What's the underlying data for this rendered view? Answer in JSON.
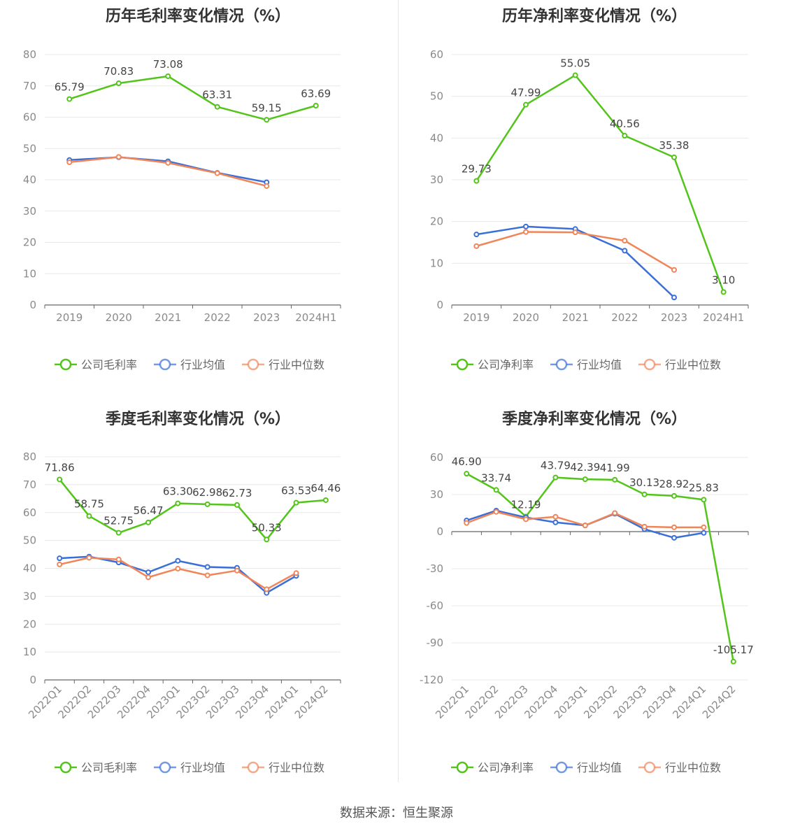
{
  "source_label": "数据来源：恒生聚源",
  "colors": {
    "company": "#52c41a",
    "avg": "#3a6fd8",
    "median": "#f0855a",
    "grid": "#e8e8e8",
    "axis": "#666666"
  },
  "chart_data": [
    {
      "type": "line",
      "title": "历年毛利率变化情况（%）",
      "categories": [
        "2019",
        "2020",
        "2021",
        "2022",
        "2023",
        "2024H1"
      ],
      "ylim": [
        0,
        80
      ],
      "yticks": [
        0,
        10,
        20,
        30,
        40,
        50,
        60,
        70,
        80
      ],
      "rotate_x": false,
      "grid": true,
      "legend_position": "bottom",
      "series": [
        {
          "name": "公司毛利率",
          "values": [
            65.79,
            70.83,
            73.08,
            63.31,
            59.15,
            63.69
          ],
          "labels": [
            "65.79",
            "70.83",
            "73.08",
            "63.31",
            "59.15",
            "63.69"
          ],
          "color": "#52c41a"
        },
        {
          "name": "行业均值",
          "values": [
            46.3,
            47.2,
            45.9,
            42.2,
            39.2,
            null
          ],
          "color": "#3a6fd8"
        },
        {
          "name": "行业中位数",
          "values": [
            45.6,
            47.3,
            45.4,
            42.1,
            38.0,
            null
          ],
          "color": "#f0855a"
        }
      ]
    },
    {
      "type": "line",
      "title": "历年净利率变化情况（%）",
      "categories": [
        "2019",
        "2020",
        "2021",
        "2022",
        "2023",
        "2024H1"
      ],
      "ylim": [
        0,
        60
      ],
      "yticks": [
        0,
        10,
        20,
        30,
        40,
        50,
        60
      ],
      "rotate_x": false,
      "grid": true,
      "legend_position": "bottom",
      "series": [
        {
          "name": "公司净利率",
          "values": [
            29.73,
            47.99,
            55.05,
            40.56,
            35.38,
            3.1
          ],
          "labels": [
            "29.73",
            "47.99",
            "55.05",
            "40.56",
            "35.38",
            "3.10"
          ],
          "color": "#52c41a"
        },
        {
          "name": "行业均值",
          "values": [
            16.9,
            18.8,
            18.2,
            13.0,
            1.8,
            null
          ],
          "color": "#3a6fd8"
        },
        {
          "name": "行业中位数",
          "values": [
            14.1,
            17.5,
            17.4,
            15.4,
            8.4,
            null
          ],
          "color": "#f0855a"
        }
      ]
    },
    {
      "type": "line",
      "title": "季度毛利率变化情况（%）",
      "categories": [
        "2022Q1",
        "2022Q2",
        "2022Q3",
        "2022Q4",
        "2023Q1",
        "2023Q2",
        "2023Q3",
        "2023Q4",
        "2024Q1",
        "2024Q2"
      ],
      "ylim": [
        0,
        80
      ],
      "yticks": [
        0,
        10,
        20,
        30,
        40,
        50,
        60,
        70,
        80
      ],
      "rotate_x": true,
      "grid": true,
      "legend_position": "bottom",
      "series": [
        {
          "name": "公司毛利率",
          "values": [
            71.86,
            58.75,
            52.75,
            56.47,
            63.3,
            62.98,
            62.73,
            50.33,
            63.53,
            64.46
          ],
          "labels": [
            "71.86",
            "58.75",
            "52.75",
            "56.47",
            "63.30",
            "62.98",
            "62.73",
            "50.33",
            "63.53",
            "64.46"
          ],
          "color": "#52c41a"
        },
        {
          "name": "行业均值",
          "values": [
            43.6,
            44.2,
            42.1,
            38.6,
            42.7,
            40.5,
            40.2,
            31.2,
            37.3,
            null
          ],
          "color": "#3a6fd8"
        },
        {
          "name": "行业中位数",
          "values": [
            41.4,
            43.8,
            43.2,
            36.8,
            39.9,
            37.5,
            39.2,
            32.5,
            38.3,
            null
          ],
          "color": "#f0855a"
        }
      ]
    },
    {
      "type": "line",
      "title": "季度净利率变化情况（%）",
      "categories": [
        "2022Q1",
        "2022Q2",
        "2022Q3",
        "2022Q4",
        "2023Q1",
        "2023Q2",
        "2023Q3",
        "2023Q4",
        "2024Q1",
        "2024Q2"
      ],
      "ylim": [
        -120,
        60
      ],
      "yticks": [
        -120,
        -90,
        -60,
        -30,
        0,
        30,
        60
      ],
      "rotate_x": true,
      "grid": true,
      "legend_position": "bottom",
      "series": [
        {
          "name": "公司净利率",
          "values": [
            46.9,
            33.74,
            12.19,
            43.79,
            42.39,
            41.99,
            30.13,
            28.92,
            25.83,
            -105.17
          ],
          "labels": [
            "46.90",
            "33.74",
            "12.19",
            "43.79",
            "42.39",
            "41.99",
            "30.13",
            "28.92",
            "25.83",
            "-105.17"
          ],
          "color": "#52c41a"
        },
        {
          "name": "行业均值",
          "values": [
            9.0,
            17.0,
            11.5,
            7.5,
            5.0,
            14.5,
            2.0,
            -5.0,
            -1.0,
            null
          ],
          "color": "#3a6fd8"
        },
        {
          "name": "行业中位数",
          "values": [
            7.0,
            16.0,
            10.0,
            12.0,
            5.0,
            15.0,
            4.0,
            3.5,
            3.5,
            null
          ],
          "color": "#f0855a"
        }
      ]
    }
  ]
}
